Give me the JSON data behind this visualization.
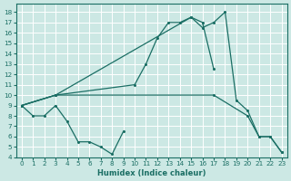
{
  "xlabel": "Humidex (Indice chaleur)",
  "bg_color": "#cce8e4",
  "line_color": "#1a6e64",
  "grid_color": "#ffffff",
  "xlim": [
    -0.5,
    23.5
  ],
  "ylim": [
    4,
    18.8
  ],
  "xticks": [
    0,
    1,
    2,
    3,
    4,
    5,
    6,
    7,
    8,
    9,
    10,
    11,
    12,
    13,
    14,
    15,
    16,
    17,
    18,
    19,
    20,
    21,
    22,
    23
  ],
  "yticks": [
    4,
    5,
    6,
    7,
    8,
    9,
    10,
    11,
    12,
    13,
    14,
    15,
    16,
    17,
    18
  ],
  "lines": [
    {
      "x": [
        0,
        1,
        2,
        3,
        4,
        5,
        6,
        7,
        8,
        9
      ],
      "y": [
        9,
        8,
        8,
        9,
        7.5,
        5.5,
        5.5,
        5,
        4.3,
        6.5
      ]
    },
    {
      "x": [
        0,
        3,
        10,
        11,
        12,
        13,
        14,
        15,
        16,
        17
      ],
      "y": [
        9,
        10,
        11,
        13,
        15.5,
        17,
        17,
        17.5,
        17,
        12.5
      ]
    },
    {
      "x": [
        0,
        3,
        15,
        16,
        17,
        18,
        19,
        20,
        21,
        22,
        23
      ],
      "y": [
        9,
        10,
        17.5,
        16.5,
        17,
        18,
        9.5,
        8.5,
        6,
        6,
        4.5
      ]
    },
    {
      "x": [
        0,
        3,
        17,
        20,
        21,
        22,
        23
      ],
      "y": [
        9,
        10,
        10,
        8,
        6,
        6,
        4.5
      ]
    }
  ]
}
